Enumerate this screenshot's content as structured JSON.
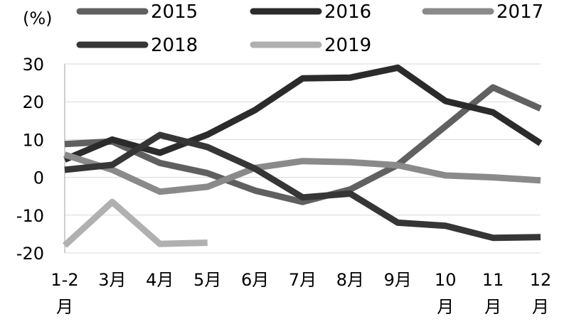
{
  "chart_data": {
    "type": "line",
    "unit_label": "(%)",
    "categories": [
      [
        "1-2",
        "月"
      ],
      [
        "3月"
      ],
      [
        "4月"
      ],
      [
        "5月"
      ],
      [
        "6月"
      ],
      [
        "7月"
      ],
      [
        "8月"
      ],
      [
        "9月"
      ],
      [
        "10",
        "月"
      ],
      [
        "11",
        "月"
      ],
      [
        "12",
        "月"
      ]
    ],
    "ylim": [
      -20,
      30
    ],
    "yticks": [
      30,
      20,
      10,
      0,
      -10,
      -20
    ],
    "grid": true,
    "legend_position": "top",
    "series": [
      {
        "name": "2015",
        "color": "#606060",
        "values": [
          8.8,
          9.5,
          3.8,
          1.1,
          -3.5,
          -6.5,
          -3.2,
          3.3,
          13.5,
          23.8,
          18.2
        ]
      },
      {
        "name": "2016",
        "color": "#2b2b2b",
        "values": [
          4.7,
          10.0,
          6.5,
          11.3,
          17.8,
          26.2,
          26.4,
          29.0,
          20.2,
          17.2,
          9.0
        ]
      },
      {
        "name": "2017",
        "color": "#8a8a8a",
        "values": [
          6.0,
          2.0,
          -3.8,
          -2.5,
          2.5,
          4.3,
          4.0,
          3.2,
          0.5,
          0.0,
          -0.8
        ]
      },
      {
        "name": "2018",
        "color": "#363636",
        "values": [
          2.0,
          3.3,
          11.2,
          8.0,
          2.3,
          -5.3,
          -4.3,
          -12.0,
          -12.8,
          -16.0,
          -15.8
        ]
      },
      {
        "name": "2019",
        "color": "#b0b0b0",
        "values": [
          -18.0,
          -6.5,
          -17.6,
          -17.3,
          null,
          null,
          null,
          null,
          null,
          null,
          null
        ]
      }
    ]
  }
}
